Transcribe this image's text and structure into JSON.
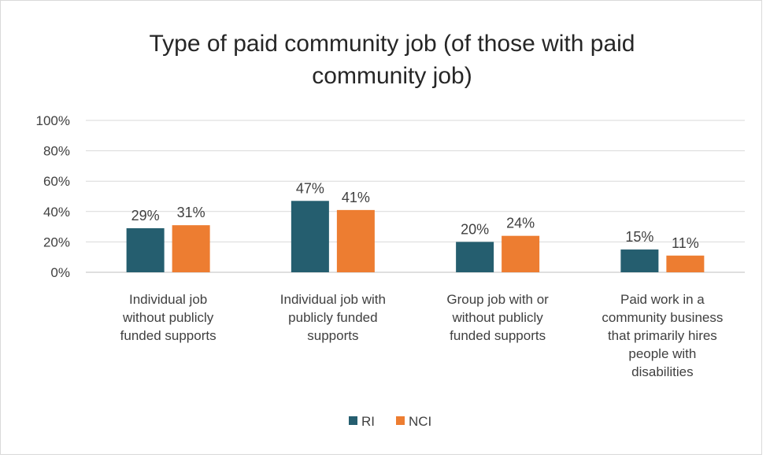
{
  "chart_data": {
    "type": "bar",
    "title": "Type of paid community job (of those with paid community job)",
    "title_lines": [
      "Type of paid community job (of those with paid",
      "community job)"
    ],
    "categories": [
      "Individual job without publicly funded supports",
      "Individual job with publicly funded supports",
      "Group job with or without publicly funded supports",
      "Paid work in a community business that primarily hires people with disabilities"
    ],
    "category_lines": [
      [
        "Individual job",
        "without publicly",
        "funded supports"
      ],
      [
        "Individual job with",
        "publicly funded",
        "supports"
      ],
      [
        "Group job with or",
        "without publicly",
        "funded supports"
      ],
      [
        "Paid work in a",
        "community business",
        "that primarily hires",
        "people with",
        "disabilities"
      ]
    ],
    "series": [
      {
        "name": "RI",
        "color": "#255e6f",
        "values": [
          29,
          47,
          20,
          15
        ],
        "labels": [
          "29%",
          "47%",
          "20%",
          "15%"
        ]
      },
      {
        "name": "NCI",
        "color": "#ed7d31",
        "values": [
          31,
          41,
          24,
          11
        ],
        "labels": [
          "31%",
          "41%",
          "24%",
          "11%"
        ]
      }
    ],
    "ylim": [
      0,
      100
    ],
    "yticks": [
      0,
      20,
      40,
      60,
      80,
      100
    ],
    "ytick_labels": [
      "0%",
      "20%",
      "40%",
      "60%",
      "80%",
      "100%"
    ],
    "xlabel": "",
    "ylabel": "",
    "grid": true,
    "legend_position": "bottom"
  }
}
